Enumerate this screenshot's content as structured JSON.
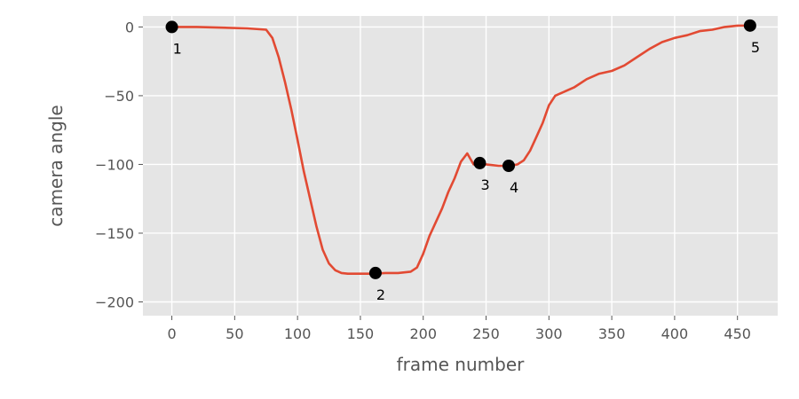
{
  "chart_data": {
    "type": "line",
    "title": "",
    "xlabel": "frame number",
    "ylabel": "camera angle",
    "xlim": [
      -23,
      482
    ],
    "ylim": [
      -210,
      8
    ],
    "xticks": [
      0,
      50,
      100,
      150,
      200,
      250,
      300,
      350,
      400,
      450
    ],
    "yticks": [
      0,
      -50,
      -100,
      -150,
      -200
    ],
    "xtick_labels": [
      "0",
      "50",
      "100",
      "150",
      "200",
      "250",
      "300",
      "350",
      "400",
      "450"
    ],
    "ytick_labels": [
      "0",
      "−50",
      "−100",
      "−150",
      "−200"
    ],
    "grid": true,
    "background": "#e5e5e5",
    "grid_color": "#ffffff",
    "series": [
      {
        "color": "#e24a33",
        "x": [
          0,
          20,
          40,
          60,
          75,
          80,
          85,
          90,
          95,
          100,
          105,
          110,
          115,
          120,
          125,
          130,
          135,
          140,
          145,
          150,
          160,
          170,
          180,
          190,
          195,
          200,
          205,
          210,
          215,
          220,
          225,
          230,
          235,
          240,
          245,
          250,
          260,
          270,
          275,
          280,
          285,
          290,
          295,
          300,
          305,
          310,
          320,
          330,
          340,
          350,
          360,
          370,
          380,
          390,
          400,
          410,
          420,
          430,
          440,
          450,
          460
        ],
        "y": [
          0,
          0,
          -0.5,
          -1,
          -2,
          -8,
          -22,
          -40,
          -60,
          -82,
          -105,
          -125,
          -145,
          -162,
          -172,
          -177,
          -179,
          -179.5,
          -179.5,
          -179.5,
          -179.5,
          -179,
          -179,
          -178,
          -175,
          -165,
          -152,
          -142,
          -132,
          -120,
          -110,
          -98,
          -92,
          -100,
          -100,
          -100,
          -101,
          -101,
          -100,
          -97,
          -90,
          -80,
          -70,
          -57,
          -50,
          -48,
          -44,
          -38,
          -34,
          -32,
          -28,
          -22,
          -16,
          -11,
          -8,
          -6,
          -3,
          -2,
          0,
          1,
          1
        ]
      }
    ],
    "keyframes": [
      {
        "label": "1",
        "x": 0,
        "y": 0
      },
      {
        "label": "2",
        "x": 162,
        "y": -179
      },
      {
        "label": "3",
        "x": 245,
        "y": -99
      },
      {
        "label": "4",
        "x": 268,
        "y": -101
      },
      {
        "label": "5",
        "x": 460,
        "y": 1
      }
    ]
  }
}
